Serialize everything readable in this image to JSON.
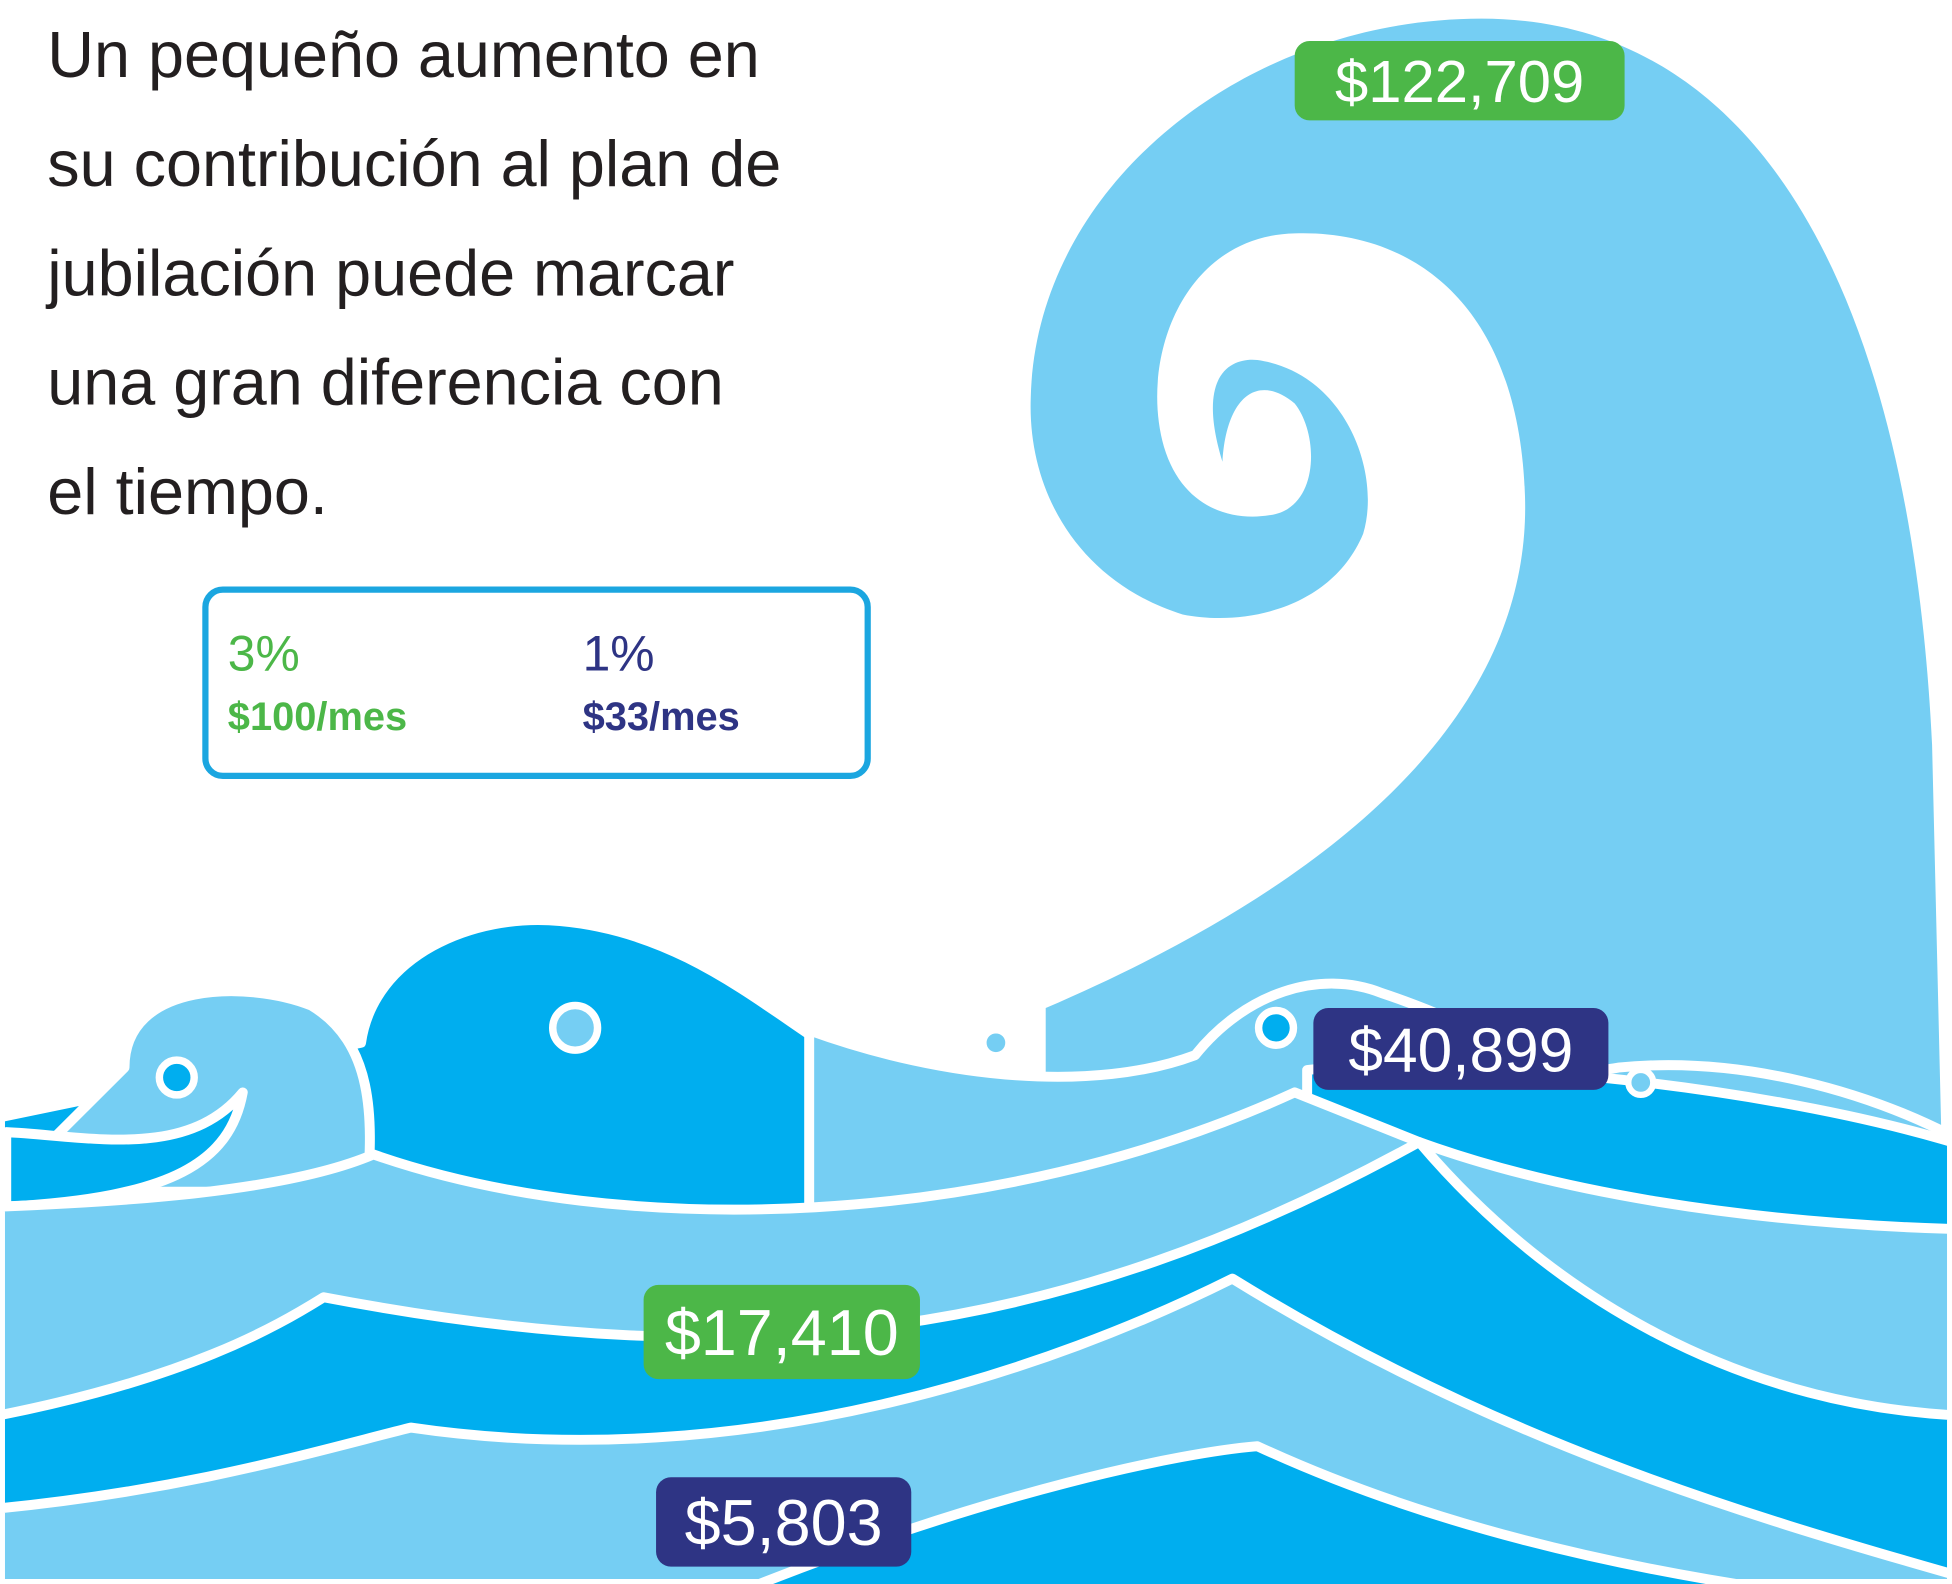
{
  "heading": [
    "Un pequeño aumento en",
    "su contribución al plan de",
    "jubilación puede marcar",
    "una gran diferencia con",
    "el tiempo."
  ],
  "legend": [
    {
      "rate": "3%",
      "amount": "$100/mes",
      "color": "#4cb748"
    },
    {
      "rate": "1%",
      "amount": "$33/mes",
      "color": "#2e3484"
    }
  ],
  "labels": [
    {
      "text": "$122,709",
      "color": "#4cb748"
    },
    {
      "text": "$40,899",
      "color": "#2e3484"
    },
    {
      "text": "$17,410",
      "color": "#4cb748"
    },
    {
      "text": "$5,803",
      "color": "#2e3484"
    }
  ]
}
